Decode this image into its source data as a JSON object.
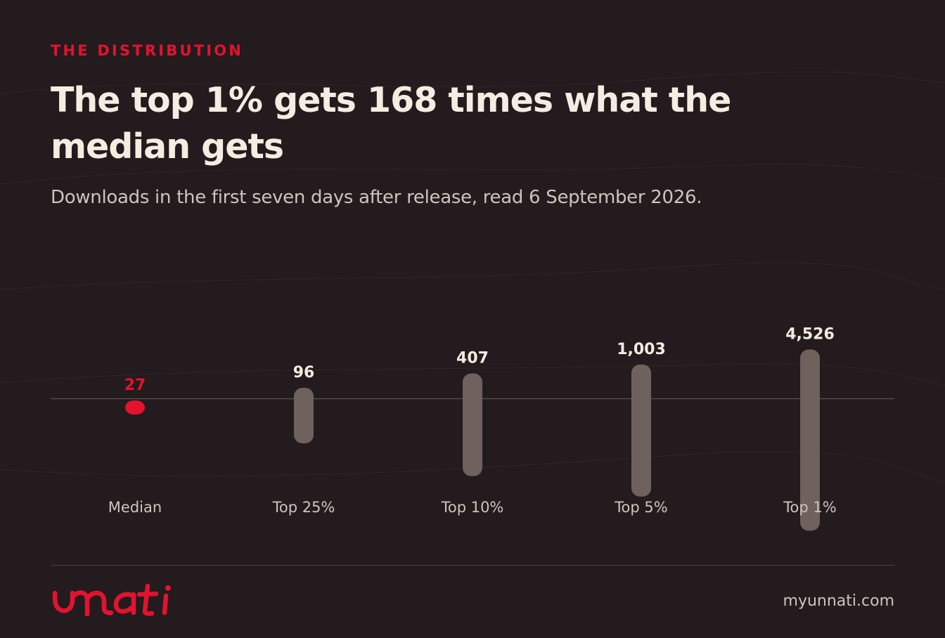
{
  "eyebrow": "THE DISTRIBUTION",
  "title": "The top 1% gets 168 times what the median gets",
  "subtitle": "Downloads in the first seven days after release, read 6 September 2026.",
  "colors": {
    "background": "#231b1d",
    "accent": "#e3122f",
    "bar": "#6e615e",
    "text": "#f4ebe0",
    "muted": "#cfc4bc",
    "baseline": "#5a5052"
  },
  "chart_data": {
    "type": "bar",
    "categories": [
      "Median",
      "Top 25%",
      "Top 10%",
      "Top 5%",
      "Top 1%"
    ],
    "values": [
      27,
      96,
      407,
      1003,
      4526
    ],
    "value_labels": [
      "27",
      "96",
      "407",
      "1,003",
      "4,526"
    ],
    "highlight": "Median",
    "scale": "log",
    "baseline_value": 27,
    "grid": false,
    "legend": "none"
  },
  "footer": {
    "brand": "unnati",
    "site": "myunnati.com"
  }
}
